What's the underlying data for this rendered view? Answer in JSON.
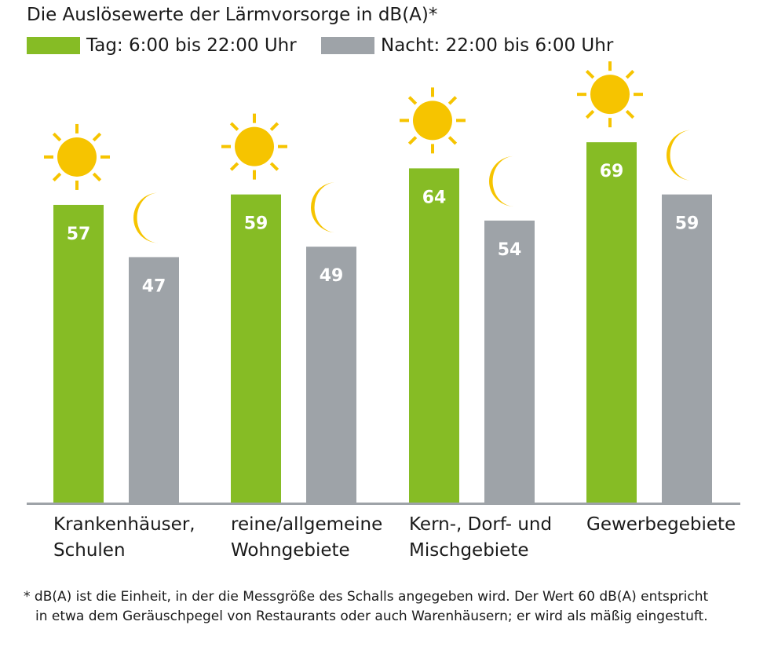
{
  "chart_data": {
    "type": "bar",
    "title": "Die Auslösewerte der Lärmvorsorge in dB(A)*",
    "categories": [
      "Krankenhäuser,\nSchulen",
      "reine/allgemeine\nWohngebiete",
      "Kern-, Dorf- und\nMischgebiete",
      "Gewerbegebiete"
    ],
    "series": [
      {
        "name": "Tag: 6:00 bis 22:00 Uhr",
        "values": [
          57,
          59,
          64,
          69
        ],
        "color": "#86bc25",
        "icon": "sun-icon"
      },
      {
        "name": "Nacht: 22:00 bis 6:00 Uhr",
        "values": [
          47,
          49,
          54,
          59
        ],
        "color": "#9ea3a8",
        "icon": "moon-icon"
      }
    ],
    "ylim": [
      0,
      75
    ],
    "grid": false,
    "legend_position": "top-left",
    "icon_color": "#f6c400",
    "axis_color": "#9ea3a8",
    "label_color": "#ffffff"
  },
  "footnote": {
    "line1": "* dB(A) ist die Einheit, in der die Messgröße des Schalls angegeben wird. Der Wert 60 dB(A) entspricht",
    "line2": "in etwa dem Geräuschpegel von Restaurants oder auch Warenhäusern; er wird als mäßig eingestuft."
  }
}
